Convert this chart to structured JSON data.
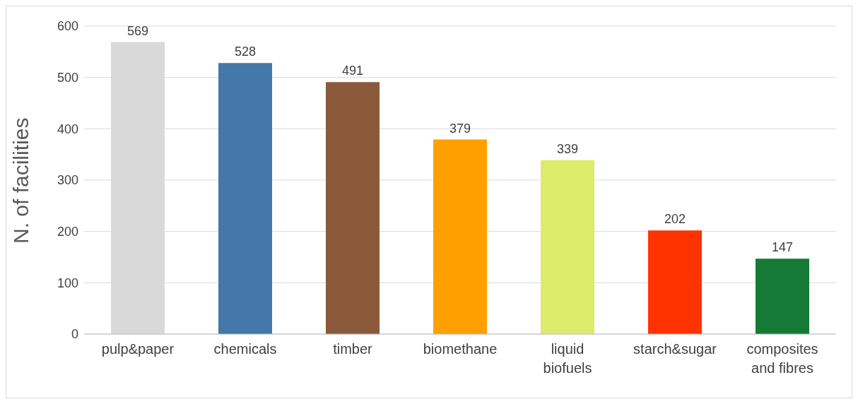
{
  "chart_data": {
    "type": "bar",
    "ylabel": "N. of facilities",
    "categories": [
      "pulp&paper",
      "chemicals",
      "timber",
      "biomethane",
      "liquid biofuels",
      "starch&sugar",
      "composites and fibres"
    ],
    "values": [
      569,
      528,
      491,
      379,
      339,
      202,
      147
    ],
    "colors": [
      "#d9d9d9",
      "#4477aa",
      "#8b5a3a",
      "#ffa000",
      "#ddeb6a",
      "#ff3300",
      "#157a35"
    ],
    "ylim": [
      0,
      600
    ],
    "yticks": [
      0,
      100,
      200,
      300,
      400,
      500,
      600
    ],
    "grid": "y",
    "data_labels": true,
    "legend": false
  }
}
